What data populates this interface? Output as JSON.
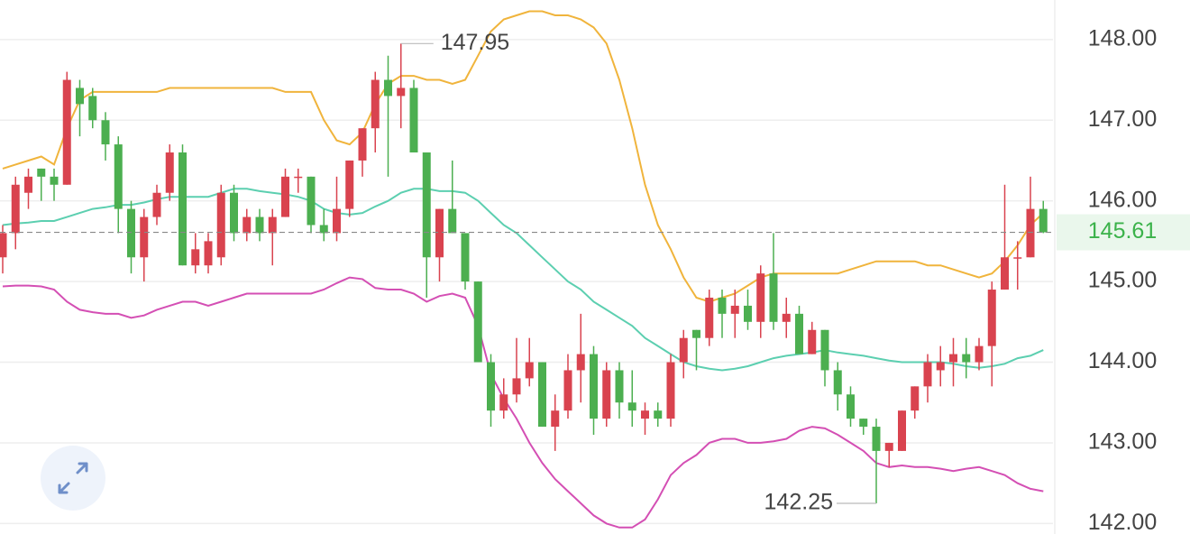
{
  "chart_data": {
    "type": "candlestick",
    "open": [
      145.3,
      145.6,
      146.1,
      146.4,
      146.3,
      146.2,
      147.4,
      147.3,
      147.0,
      146.7,
      145.9,
      145.3,
      145.8,
      146.1,
      146.6,
      145.2,
      145.2,
      145.3,
      146.1,
      145.6,
      145.8,
      145.6,
      145.8,
      146.3,
      146.3,
      145.7,
      145.6,
      145.9,
      146.5,
      146.9,
      147.5,
      147.3,
      147.4,
      146.6,
      145.3,
      145.9,
      145.6,
      145.0,
      144.0,
      143.4,
      143.6,
      143.8,
      144.0,
      143.2,
      143.4,
      143.9,
      144.1,
      143.3,
      143.9,
      143.5,
      143.3,
      143.4,
      143.3,
      144.0,
      144.4,
      144.3,
      144.8,
      144.6,
      144.7,
      144.5,
      145.1,
      144.5,
      144.6,
      144.1,
      144.4,
      143.9,
      143.6,
      143.3,
      143.2,
      142.9,
      142.9,
      143.4,
      143.7,
      143.9,
      144.0,
      144.1,
      144.0,
      144.2,
      144.9,
      145.3,
      145.3,
      145.9
    ],
    "high": [
      145.7,
      146.3,
      146.4,
      146.4,
      146.4,
      147.6,
      147.5,
      147.4,
      147.1,
      146.8,
      146.0,
      145.9,
      146.2,
      146.7,
      146.7,
      145.6,
      145.6,
      146.2,
      146.2,
      145.9,
      145.9,
      145.9,
      146.4,
      146.4,
      146.3,
      145.9,
      146.3,
      146.5,
      146.9,
      147.6,
      147.8,
      147.95,
      147.5,
      146.6,
      145.9,
      146.5,
      145.6,
      145.0,
      144.1,
      143.8,
      144.3,
      144.3,
      144.0,
      143.6,
      144.1,
      144.6,
      144.2,
      144.0,
      144.0,
      143.9,
      143.5,
      143.5,
      144.1,
      144.4,
      144.4,
      144.9,
      144.9,
      144.9,
      144.9,
      145.2,
      145.6,
      144.8,
      144.7,
      144.5,
      144.4,
      144.0,
      143.7,
      143.3,
      143.3,
      143.0,
      143.4,
      143.7,
      144.1,
      144.2,
      144.3,
      144.3,
      144.3,
      145.0,
      146.2,
      145.5,
      146.3,
      146.0
    ],
    "low": [
      145.1,
      145.4,
      145.9,
      146.0,
      146.0,
      146.2,
      146.8,
      146.9,
      146.5,
      145.6,
      145.1,
      145.0,
      145.7,
      146.0,
      145.2,
      145.1,
      145.1,
      145.2,
      145.5,
      145.5,
      145.5,
      145.2,
      145.8,
      146.1,
      145.6,
      145.5,
      145.5,
      145.8,
      146.3,
      146.6,
      146.3,
      146.9,
      146.6,
      144.8,
      145.0,
      145.6,
      144.9,
      144.0,
      143.2,
      143.3,
      143.5,
      143.7,
      143.2,
      142.9,
      143.3,
      143.5,
      143.1,
      143.2,
      143.3,
      143.2,
      143.1,
      143.2,
      143.2,
      143.8,
      143.9,
      144.2,
      144.3,
      144.3,
      144.4,
      144.3,
      144.4,
      144.3,
      144.1,
      144.1,
      143.7,
      143.4,
      143.2,
      143.1,
      142.25,
      142.7,
      142.9,
      143.3,
      143.5,
      143.7,
      143.7,
      143.8,
      143.9,
      143.7,
      144.9,
      144.9,
      145.3,
      145.6
    ],
    "close": [
      145.6,
      146.2,
      146.3,
      146.3,
      146.2,
      147.5,
      147.2,
      147.0,
      146.7,
      145.9,
      145.3,
      145.8,
      146.1,
      146.6,
      145.2,
      145.4,
      145.5,
      146.1,
      145.6,
      145.8,
      145.6,
      145.8,
      146.3,
      146.3,
      145.7,
      145.6,
      145.9,
      146.5,
      146.9,
      147.5,
      147.3,
      147.4,
      146.6,
      145.3,
      145.9,
      145.6,
      145.0,
      144.0,
      143.4,
      143.6,
      143.8,
      144.0,
      143.2,
      143.4,
      143.9,
      144.1,
      143.3,
      143.9,
      143.5,
      143.4,
      143.4,
      143.3,
      144.0,
      144.3,
      144.3,
      144.8,
      144.6,
      144.7,
      144.5,
      145.1,
      144.5,
      144.6,
      144.1,
      144.4,
      143.9,
      143.6,
      143.3,
      143.2,
      142.9,
      143.0,
      143.4,
      143.7,
      144.0,
      144.0,
      144.1,
      144.0,
      144.2,
      144.9,
      145.3,
      145.3,
      145.9,
      145.61
    ],
    "up_color": "#d9434f",
    "down_color": "#4caf50",
    "series": [
      {
        "color": "#f0b43c",
        "values": [
          146.4,
          146.45,
          146.5,
          146.55,
          146.45,
          146.9,
          147.25,
          147.35,
          147.35,
          147.35,
          147.35,
          147.35,
          147.35,
          147.4,
          147.4,
          147.4,
          147.4,
          147.4,
          147.4,
          147.4,
          147.4,
          147.4,
          147.35,
          147.35,
          147.35,
          147.0,
          146.75,
          146.7,
          146.85,
          147.2,
          147.45,
          147.55,
          147.55,
          147.5,
          147.5,
          147.45,
          147.5,
          147.8,
          148.1,
          148.25,
          148.3,
          148.35,
          148.35,
          148.3,
          148.3,
          148.25,
          148.15,
          147.95,
          147.5,
          146.9,
          146.2,
          145.7,
          145.4,
          145.05,
          144.8,
          144.75,
          144.8,
          144.85,
          144.95,
          145.05,
          145.1,
          145.1,
          145.1,
          145.1,
          145.1,
          145.1,
          145.15,
          145.2,
          145.25,
          145.25,
          145.25,
          145.25,
          145.2,
          145.2,
          145.15,
          145.1,
          145.05,
          145.1,
          145.25,
          145.45,
          145.7,
          145.85
        ]
      },
      {
        "color": "#5ccfb0",
        "values": [
          145.7,
          145.72,
          145.73,
          145.75,
          145.75,
          145.8,
          145.85,
          145.9,
          145.92,
          145.95,
          145.95,
          145.98,
          146.02,
          146.05,
          146.05,
          146.05,
          146.05,
          146.1,
          146.15,
          146.15,
          146.12,
          146.1,
          146.08,
          146.05,
          146.0,
          145.9,
          145.85,
          145.83,
          145.85,
          145.93,
          146.0,
          146.1,
          146.15,
          146.15,
          146.12,
          146.12,
          146.1,
          146.0,
          145.85,
          145.7,
          145.6,
          145.45,
          145.3,
          145.15,
          145.0,
          144.9,
          144.75,
          144.65,
          144.55,
          144.45,
          144.3,
          144.2,
          144.1,
          144.0,
          143.95,
          143.92,
          143.9,
          143.92,
          143.95,
          144.0,
          144.05,
          144.08,
          144.1,
          144.12,
          144.15,
          144.12,
          144.1,
          144.08,
          144.05,
          144.02,
          144.0,
          144.0,
          144.0,
          144.0,
          143.98,
          143.95,
          143.93,
          143.95,
          143.98,
          144.05,
          144.08,
          144.15
        ]
      },
      {
        "color": "#d44fb4",
        "values": [
          144.94,
          144.95,
          144.95,
          144.94,
          144.9,
          144.75,
          144.65,
          144.62,
          144.6,
          144.6,
          144.55,
          144.58,
          144.65,
          144.7,
          144.75,
          144.75,
          144.7,
          144.75,
          144.8,
          144.85,
          144.85,
          144.85,
          144.85,
          144.85,
          144.85,
          144.9,
          144.98,
          145.05,
          145.03,
          144.92,
          144.9,
          144.9,
          144.85,
          144.75,
          144.82,
          144.85,
          144.8,
          144.45,
          143.85,
          143.55,
          143.3,
          143.0,
          142.75,
          142.55,
          142.4,
          142.25,
          142.1,
          142.0,
          141.95,
          141.95,
          142.05,
          142.3,
          142.6,
          142.75,
          142.85,
          143.0,
          143.05,
          143.05,
          143.0,
          143.0,
          143.02,
          143.05,
          143.15,
          143.2,
          143.18,
          143.1,
          143.0,
          142.9,
          142.75,
          142.7,
          142.72,
          142.7,
          142.7,
          142.68,
          142.65,
          142.68,
          142.7,
          142.65,
          142.6,
          142.5,
          142.43,
          142.4
        ]
      }
    ],
    "ylim": [
      141.87,
      148.49
    ],
    "yticks": [
      {
        "value": 148,
        "label": "148.00"
      },
      {
        "value": 147,
        "label": "147.00"
      },
      {
        "value": 146,
        "label": "146.00"
      },
      {
        "value": 145,
        "label": "145.00"
      },
      {
        "value": 144,
        "label": "144.00"
      },
      {
        "value": 143,
        "label": "143.00"
      },
      {
        "value": 142,
        "label": "142.00"
      }
    ],
    "grid": true,
    "last_price": {
      "value": 145.61,
      "label": "145.61",
      "color": "#3bb24a"
    },
    "annotations": [
      {
        "value": 147.95,
        "label": "147.95"
      },
      {
        "value": 142.25,
        "label": "142.25"
      }
    ]
  }
}
